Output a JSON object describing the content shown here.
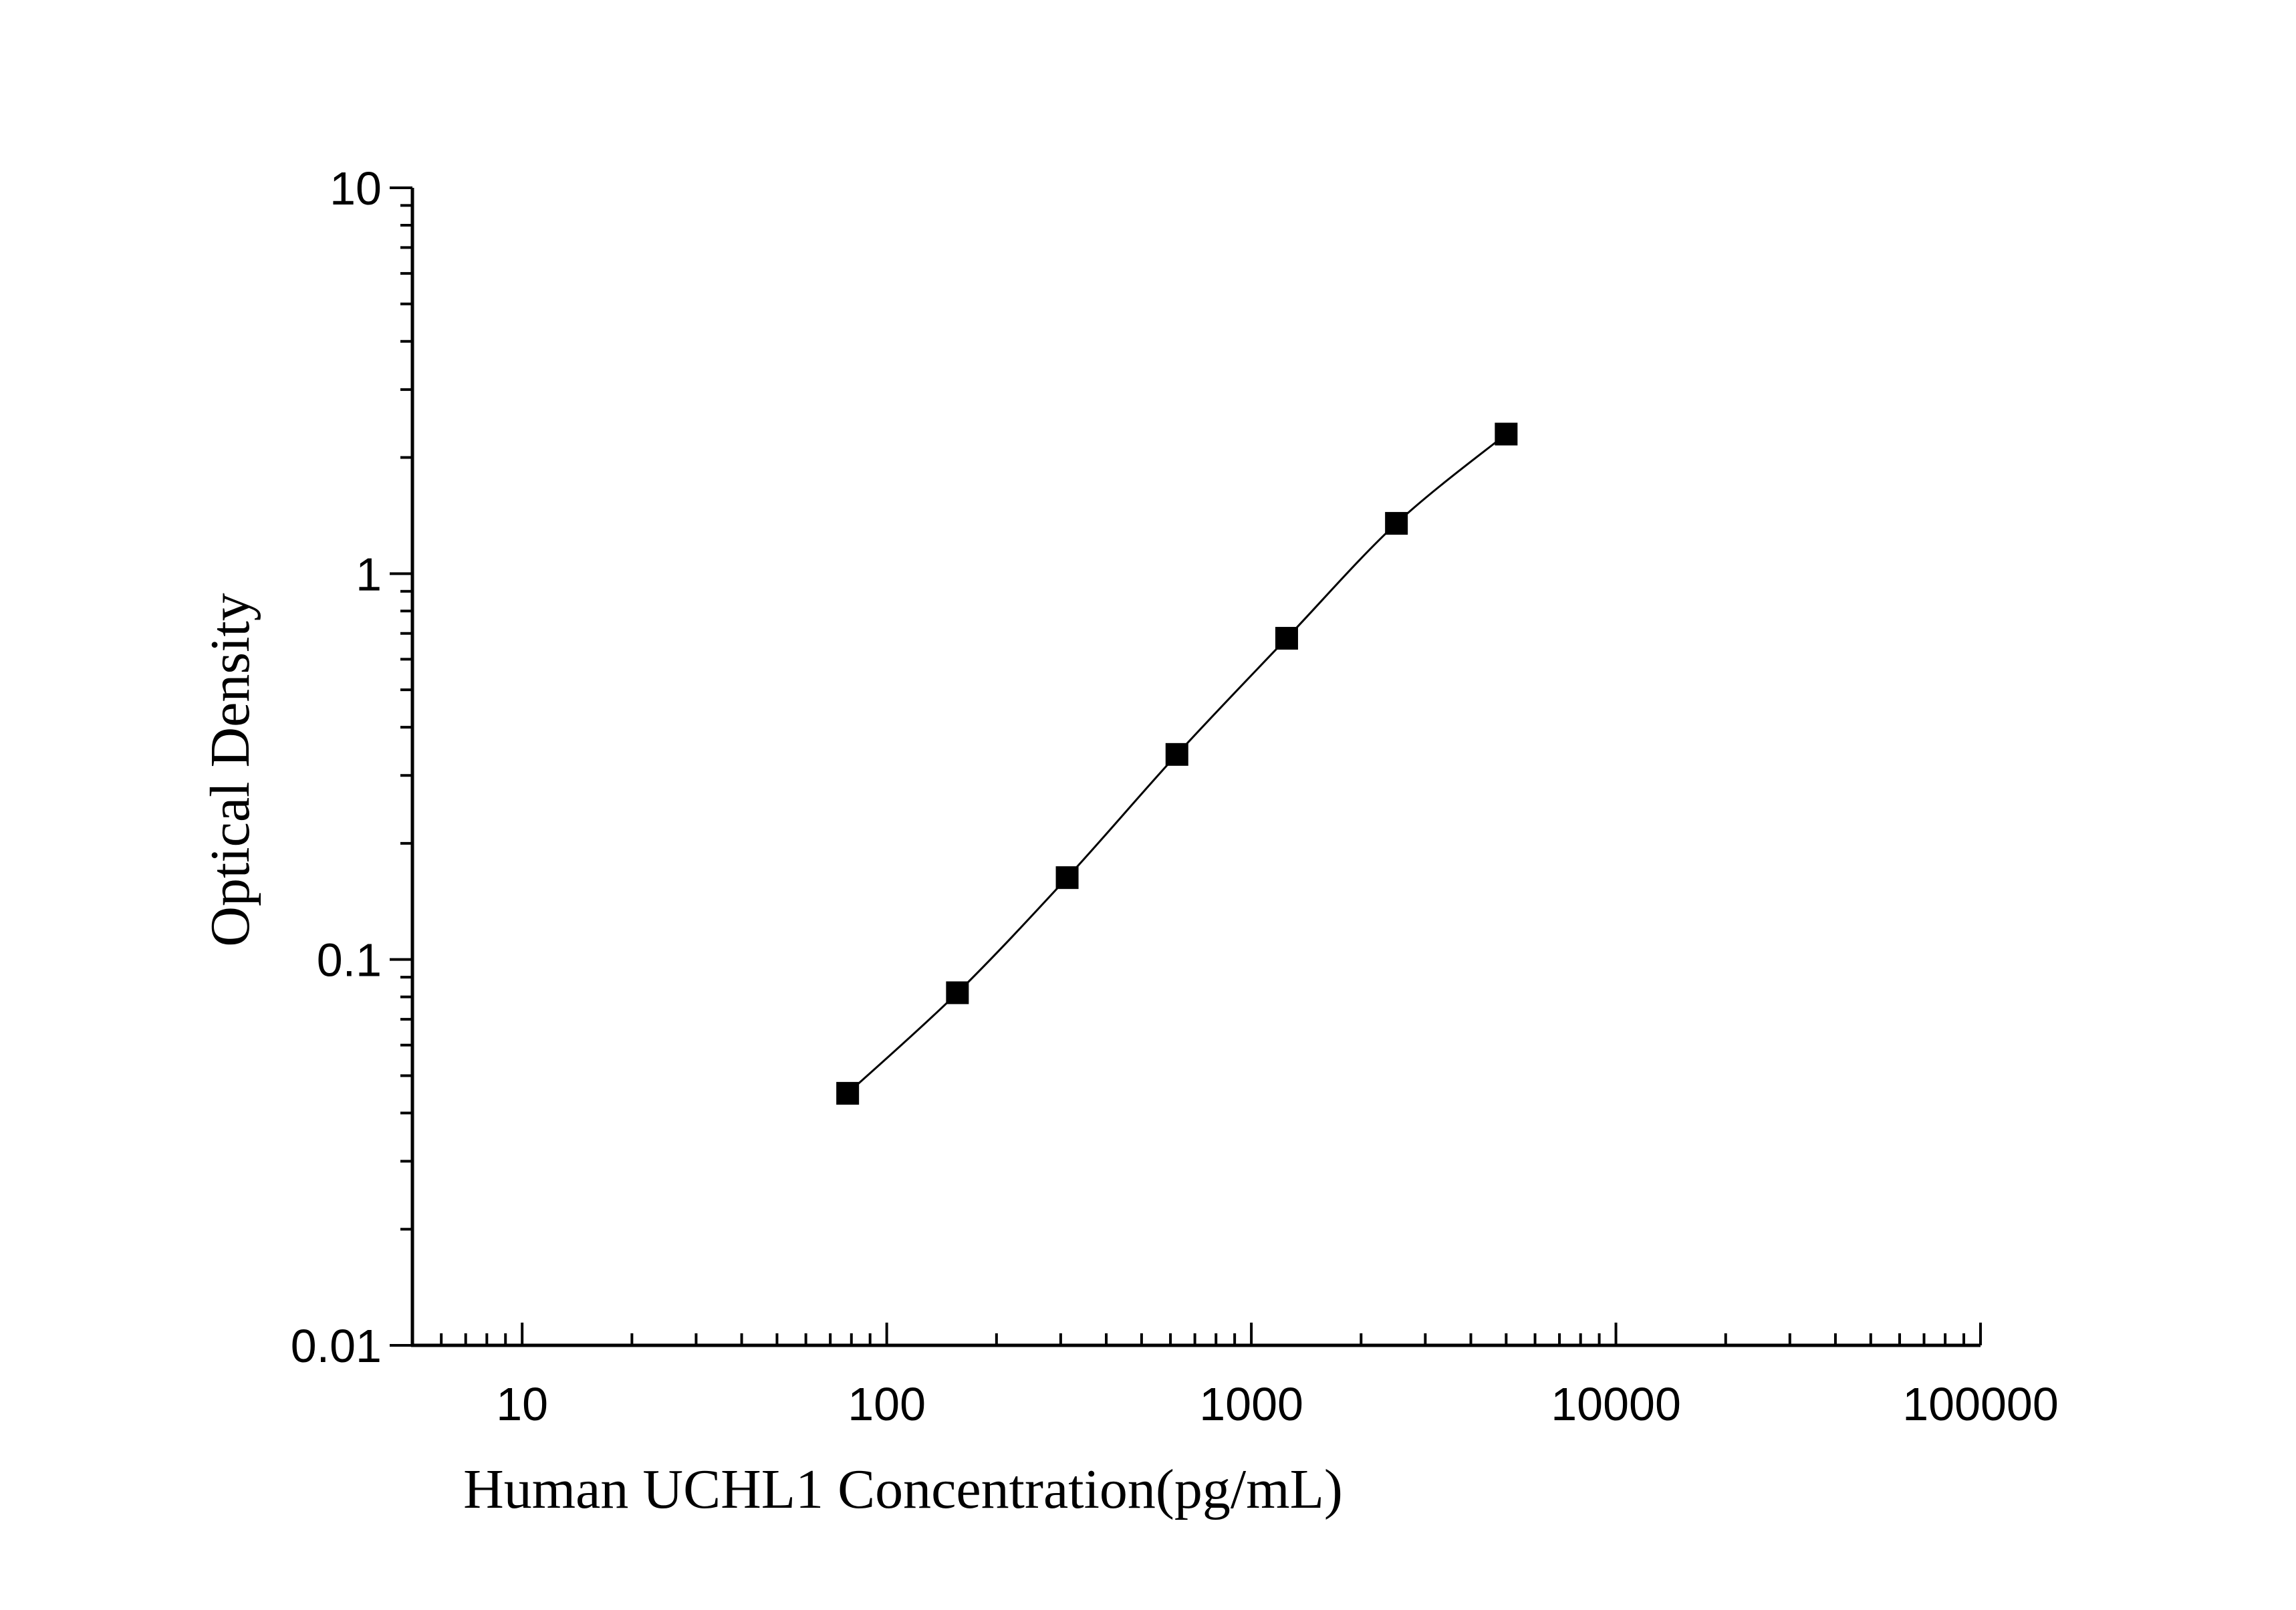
{
  "chart_data": {
    "type": "scatter",
    "title": "",
    "xlabel": "Human UCHL1 Concentration(pg/mL)",
    "ylabel": "Optical Density",
    "x_scale": "log",
    "y_scale": "log",
    "xlim": [
      5,
      100000
    ],
    "ylim": [
      0.01,
      10
    ],
    "x_ticks": [
      10,
      100,
      1000,
      10000,
      100000
    ],
    "x_tick_labels": [
      "10",
      "100",
      "1000",
      "10000",
      "100000"
    ],
    "y_ticks": [
      0.01,
      0.1,
      1,
      10
    ],
    "y_tick_labels": [
      "0.01",
      "0.1",
      "1",
      "10"
    ],
    "grid": false,
    "legend": "none",
    "series": [
      {
        "marker": "square",
        "color": "#000000",
        "x": [
          78.125,
          156.25,
          312.5,
          625,
          1250,
          2500,
          5000
        ],
        "y": [
          0.045,
          0.082,
          0.163,
          0.34,
          0.68,
          1.35,
          2.3
        ],
        "fit_curve": true
      }
    ]
  }
}
